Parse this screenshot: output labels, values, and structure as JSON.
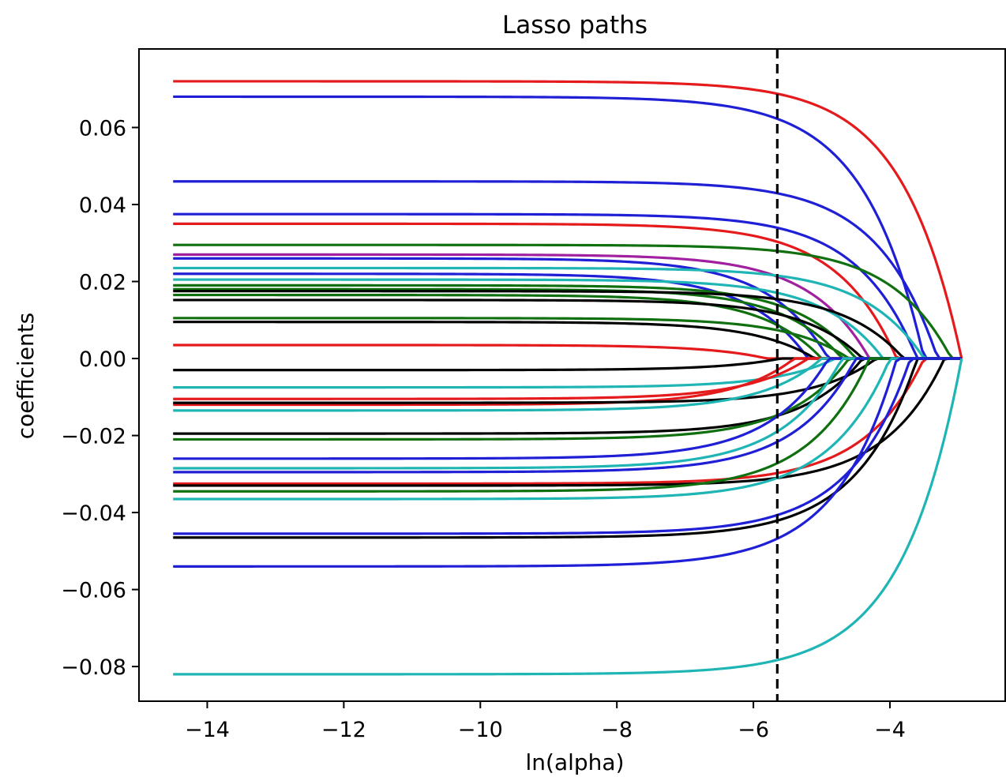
{
  "chart_data": {
    "type": "line",
    "title": "Lasso paths",
    "xlabel": "ln(alpha)",
    "ylabel": "coefficients",
    "xlim": [
      -15.0,
      -2.3
    ],
    "ylim": [
      -0.089,
      0.0804
    ],
    "xticks": [
      -14,
      -12,
      -10,
      -8,
      -6,
      -4
    ],
    "yticks": [
      0.06,
      0.04,
      0.02,
      0.0,
      -0.02,
      -0.04,
      -0.06,
      -0.08
    ],
    "xtick_labels": [
      "−14",
      "−12",
      "−10",
      "−8",
      "−6",
      "−4"
    ],
    "ytick_labels": [
      "0.06",
      "0.04",
      "0.02",
      "0.00",
      "−0.02",
      "−0.04",
      "−0.06",
      "−0.08"
    ],
    "vline": {
      "x": -5.65,
      "style": "dashed",
      "color": "#000000"
    },
    "x_start": -14.5,
    "x_end": -2.95,
    "grid": false,
    "colors": {
      "red": "#e41a1c",
      "blue": "#1f1fd6",
      "green": "#107010",
      "cyan": "#1fb5b5",
      "black": "#000000",
      "magenta": "#a020a0"
    },
    "series": [
      {
        "color": "red",
        "start": 0.072,
        "x_zero": -2.95
      },
      {
        "color": "blue",
        "start": 0.068,
        "x_zero": -3.5
      },
      {
        "color": "blue",
        "start": 0.046,
        "x_zero": -3.3
      },
      {
        "color": "blue",
        "start": 0.0375,
        "x_zero": -3.6
      },
      {
        "color": "red",
        "start": 0.035,
        "x_zero": -3.9
      },
      {
        "color": "green",
        "start": 0.0295,
        "x_zero": -3.1
      },
      {
        "color": "magenta",
        "start": 0.027,
        "x_zero": -4.3
      },
      {
        "color": "blue",
        "start": 0.026,
        "x_zero": -4.9
      },
      {
        "color": "cyan",
        "start": 0.0235,
        "x_zero": -3.5
      },
      {
        "color": "blue",
        "start": 0.022,
        "x_zero": -5.2
      },
      {
        "color": "cyan",
        "start": 0.0205,
        "x_zero": -4.1
      },
      {
        "color": "green",
        "start": 0.019,
        "x_zero": -4.5
      },
      {
        "color": "green",
        "start": 0.018,
        "x_zero": -4.7
      },
      {
        "color": "black",
        "start": 0.0175,
        "x_zero": -3.8
      },
      {
        "color": "green",
        "start": 0.0165,
        "x_zero": -5.0
      },
      {
        "color": "black",
        "start": 0.0152,
        "x_zero": -4.4
      },
      {
        "color": "green",
        "start": 0.0105,
        "x_zero": -4.6
      },
      {
        "color": "black",
        "start": 0.0095,
        "x_zero": -5.1
      },
      {
        "color": "red",
        "start": 0.0035,
        "x_zero": -5.8
      },
      {
        "color": "black",
        "start": -0.003,
        "x_zero": -5.6
      },
      {
        "color": "cyan",
        "start": -0.0075,
        "x_zero": -4.8
      },
      {
        "color": "red",
        "start": -0.0105,
        "x_zero": -5.2
      },
      {
        "color": "red",
        "start": -0.012,
        "x_zero": -5.4
      },
      {
        "color": "black",
        "start": -0.0115,
        "x_zero": -4.2
      },
      {
        "color": "cyan",
        "start": -0.0135,
        "x_zero": -5.0
      },
      {
        "color": "black",
        "start": -0.0195,
        "x_zero": -4.4
      },
      {
        "color": "green",
        "start": -0.021,
        "x_zero": -4.6
      },
      {
        "color": "blue",
        "start": -0.026,
        "x_zero": -4.9
      },
      {
        "color": "cyan",
        "start": -0.0285,
        "x_zero": -4.7
      },
      {
        "color": "blue",
        "start": -0.0295,
        "x_zero": -4.5
      },
      {
        "color": "red",
        "start": -0.0325,
        "x_zero": -3.5
      },
      {
        "color": "black",
        "start": -0.033,
        "x_zero": -3.2
      },
      {
        "color": "green",
        "start": -0.0345,
        "x_zero": -4.3
      },
      {
        "color": "cyan",
        "start": -0.0365,
        "x_zero": -4.0
      },
      {
        "color": "blue",
        "start": -0.0455,
        "x_zero": -3.7
      },
      {
        "color": "black",
        "start": -0.0465,
        "x_zero": -3.6
      },
      {
        "color": "blue",
        "start": -0.054,
        "x_zero": -3.9
      },
      {
        "color": "cyan",
        "start": -0.082,
        "x_zero": -2.95
      }
    ]
  }
}
